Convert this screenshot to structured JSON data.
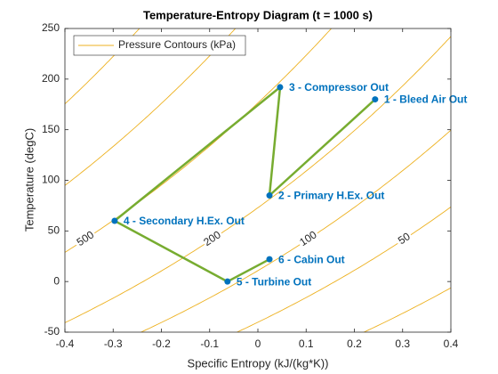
{
  "chart_data": {
    "type": "line",
    "title": "Temperature-Entropy Diagram (t = 1000 s)",
    "xlabel": "Specific Entropy (kJ/(kg*K))",
    "ylabel": "Temperature (degC)",
    "xlim": [
      -0.4,
      0.4
    ],
    "ylim": [
      -50,
      250
    ],
    "xticks": [
      -0.4,
      -0.3,
      -0.2,
      -0.1,
      0,
      0.1,
      0.2,
      0.3,
      0.4
    ],
    "yticks": [
      -50,
      0,
      50,
      100,
      150,
      200,
      250
    ],
    "legend": "northwest",
    "contours": {
      "name": "Pressure Contours (kPa)",
      "color": "#EDB120",
      "levels": [
        2000,
        1000,
        500,
        200,
        100,
        50,
        20
      ],
      "labeled": [
        false,
        false,
        true,
        true,
        true,
        true,
        false
      ]
    },
    "series": [
      {
        "color": "#77AC30",
        "marker_color": "#0072BD",
        "x": [
          0.243,
          0.024,
          0.046,
          -0.297,
          -0.063,
          0.024
        ],
        "values": [
          180,
          85,
          192,
          60,
          0,
          22
        ],
        "point_labels": [
          "1 - Bleed Air Out",
          "2 - Primary H.Ex. Out",
          "3 - Compressor Out",
          "4 - Secondary H.Ex. Out",
          "5 - Turbine Out",
          "6 - Cabin Out"
        ]
      }
    ]
  }
}
